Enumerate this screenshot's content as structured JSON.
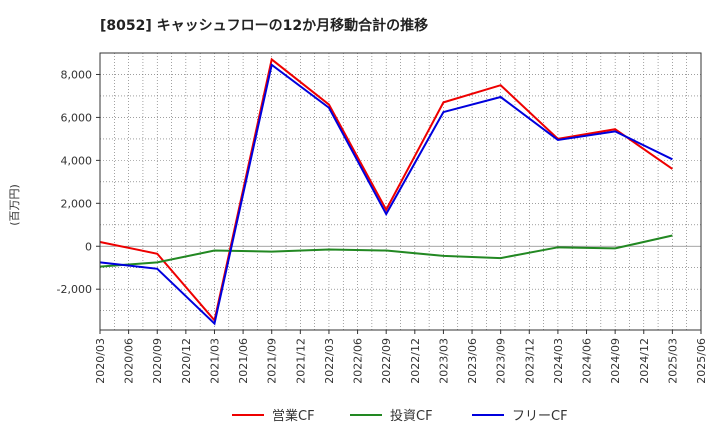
{
  "chart_data": {
    "type": "line",
    "title": "[8052]  キャッシュフローの12か月移動合計の推移",
    "ylabel": "(百万円)",
    "xlabel": "",
    "ylim": [
      -3900,
      9000
    ],
    "yticks": [
      -2000,
      0,
      2000,
      4000,
      6000,
      8000
    ],
    "ytick_labels": [
      "-2,000",
      "0",
      "2,000",
      "4,000",
      "6,000",
      "8,000"
    ],
    "xticks": [
      "2020/03",
      "2020/06",
      "2020/09",
      "2020/12",
      "2021/03",
      "2021/06",
      "2021/09",
      "2021/12",
      "2022/03",
      "2022/06",
      "2022/09",
      "2022/12",
      "2023/03",
      "2023/06",
      "2023/09",
      "2023/12",
      "2024/03",
      "2024/06",
      "2024/09",
      "2024/12",
      "2025/03",
      "2025/06"
    ],
    "x": [
      "2020/03",
      "2020/09",
      "2021/03",
      "2021/09",
      "2022/03",
      "2022/09",
      "2023/03",
      "2023/09",
      "2024/03",
      "2024/09",
      "2025/03"
    ],
    "grid": true,
    "legend_position": "bottom",
    "series": [
      {
        "name": "営業CF",
        "color": "#ee0000",
        "values": [
          200,
          -350,
          -3450,
          8700,
          6600,
          1700,
          6700,
          7500,
          5000,
          5450,
          3600
        ]
      },
      {
        "name": "投資CF",
        "color": "#228822",
        "values": [
          -950,
          -750,
          -200,
          -250,
          -150,
          -200,
          -450,
          -550,
          -50,
          -100,
          500
        ]
      },
      {
        "name": "フリーCF",
        "color": "#0000dd",
        "values": [
          -750,
          -1050,
          -3600,
          8450,
          6450,
          1500,
          6250,
          6950,
          4950,
          5350,
          4050
        ]
      }
    ]
  }
}
